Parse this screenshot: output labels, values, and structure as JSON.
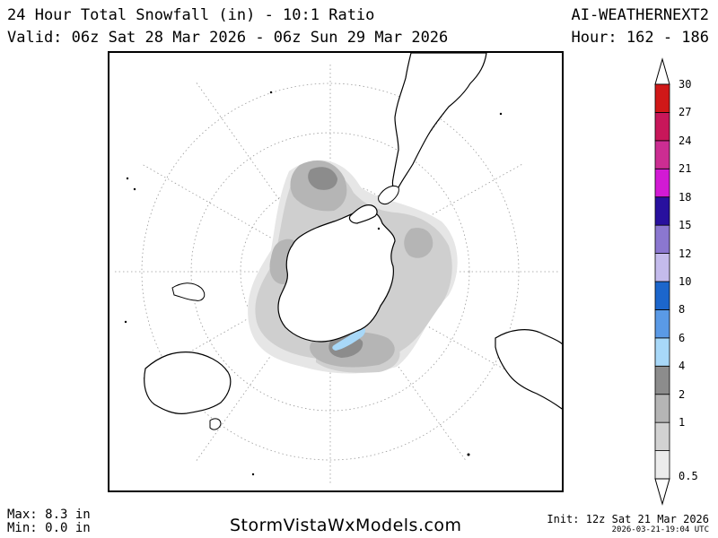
{
  "header": {
    "title": "24 Hour Total Snowfall (in) - 10:1 Ratio",
    "valid": "Valid: 06z Sat 28 Mar 2026 - 06z Sun 29 Mar 2026",
    "model": "AI-WEATHERNEXT2",
    "hour": "Hour: 162 - 186"
  },
  "legend": {
    "unit": "in",
    "bins": [
      {
        "value": "0.5",
        "color": "#ececec"
      },
      {
        "value": "1",
        "color": "#d2d2d2"
      },
      {
        "value": "2",
        "color": "#b5b5b5"
      },
      {
        "value": "4",
        "color": "#8c8c8c"
      },
      {
        "value": "6",
        "color": "#a8d8f8"
      },
      {
        "value": "8",
        "color": "#5a9ae6"
      },
      {
        "value": "10",
        "color": "#1c66cc"
      },
      {
        "value": "12",
        "color": "#c4bbec"
      },
      {
        "value": "15",
        "color": "#8b77d0"
      },
      {
        "value": "18",
        "color": "#28109e"
      },
      {
        "value": "21",
        "color": "#d21ad4"
      },
      {
        "value": "24",
        "color": "#cc2d92"
      },
      {
        "value": "27",
        "color": "#c8175a"
      },
      {
        "value": "30",
        "color": "#d01818"
      }
    ]
  },
  "stats": {
    "max": "Max: 8.3 in",
    "min": "Min: 0.0 in"
  },
  "footer": {
    "site": "StormVistaWxModels.com",
    "init": "Init: 12z Sat 21 Mar 2026",
    "generated": "2026-03-21-19:04 UTC"
  },
  "map": {
    "projection": "south-polar-stereographic",
    "land_color": "#ffffff",
    "coast_color": "#000000",
    "grid_color": "#9a9a9a"
  }
}
